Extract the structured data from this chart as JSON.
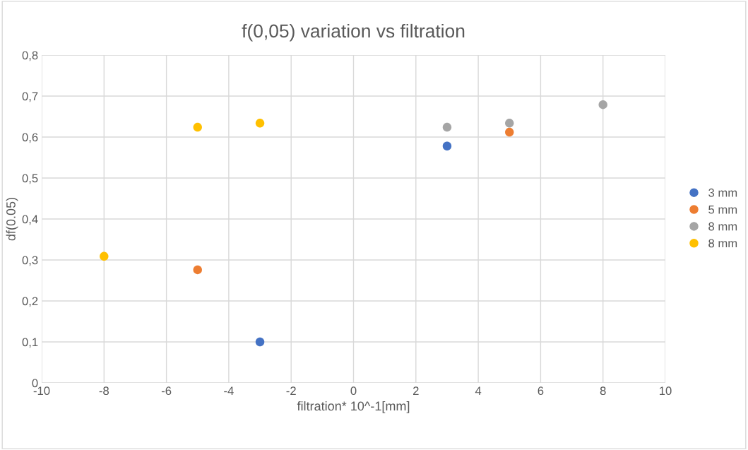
{
  "chart_data": {
    "type": "scatter",
    "title": "f(0,05) variation vs filtration",
    "xlabel": "filtration* 10^-1[mm]",
    "ylabel": "df(0.05)",
    "series": [
      {
        "name": "3 mm",
        "color": "#4472c4",
        "x": [
          -3,
          3
        ],
        "values": [
          0.1,
          0.578
        ]
      },
      {
        "name": "5 mm",
        "color": "#ed7d31",
        "x": [
          -5,
          5
        ],
        "values": [
          0.276,
          0.612
        ]
      },
      {
        "name": "8 mm",
        "color": "#a5a5a5",
        "x": [
          3,
          5,
          8
        ],
        "values": [
          0.624,
          0.634,
          0.679
        ]
      },
      {
        "name": "8 mm",
        "color": "#ffc000",
        "x": [
          -8,
          -5,
          -3
        ],
        "values": [
          0.309,
          0.624,
          0.634
        ]
      }
    ],
    "xlim": [
      -10,
      10
    ],
    "xticks": [
      -10,
      -8,
      -6,
      -4,
      -2,
      0,
      2,
      4,
      6,
      8,
      10
    ],
    "ylim": [
      0,
      0.8
    ],
    "yticks": [
      0,
      {
        "value": 0.1,
        "label": "0,1"
      },
      {
        "value": 0.2,
        "label": "0,2"
      },
      {
        "value": 0.3,
        "label": "0,3"
      },
      {
        "value": 0.4,
        "label": "0,4"
      },
      {
        "value": 0.5,
        "label": "0,5"
      },
      {
        "value": 0.6,
        "label": "0,6"
      },
      {
        "value": 0.7,
        "label": "0,7"
      },
      {
        "value": 0.8,
        "label": "0,8"
      }
    ],
    "grid": true,
    "legend": "right",
    "marker": "circle"
  }
}
